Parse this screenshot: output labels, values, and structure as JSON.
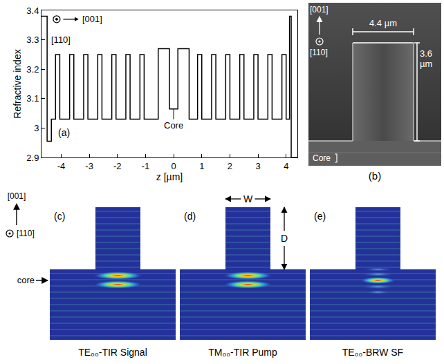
{
  "chart_data": {
    "type": "line",
    "x_label": "z [µm]",
    "y_label": "Refractive index",
    "x": [
      -4.7,
      -4.5,
      -4.35,
      -4.2,
      -4.05,
      -3.7,
      -3.55,
      -3.2,
      -3.05,
      -2.7,
      -2.55,
      -2.2,
      -2.05,
      -1.7,
      -1.55,
      -1.2,
      -1.05,
      -0.55,
      -0.15,
      0.15,
      0.55,
      0.85,
      1.0,
      1.35,
      1.5,
      1.85,
      2.0,
      2.35,
      2.5,
      2.85,
      3.0,
      3.35,
      3.5,
      3.85,
      4.0,
      4.12,
      4.18,
      4.4
    ],
    "values": [
      3.38,
      2.955,
      3.03,
      3.25,
      3.03,
      3.25,
      3.03,
      3.25,
      3.03,
      3.25,
      3.03,
      3.25,
      3.03,
      3.25,
      3.03,
      3.25,
      3.03,
      3.27,
      3.065,
      3.27,
      3.03,
      3.25,
      3.03,
      3.25,
      3.03,
      3.25,
      3.03,
      3.25,
      3.03,
      3.25,
      3.03,
      3.25,
      3.03,
      3.25,
      3.03,
      3.38,
      2.9,
      2.9
    ],
    "color": "#000000",
    "line_style": "step",
    "xlim": [
      -4.7,
      4.4
    ],
    "xticks": [
      -4,
      -3,
      -2,
      -1,
      0,
      1,
      2,
      3,
      4
    ],
    "ylim": [
      2.9,
      3.4
    ],
    "yticks": [
      2.9,
      3,
      3.1,
      3.2,
      3.3,
      3.4
    ],
    "grid": false,
    "panel_label": {
      "text": "(a)",
      "x": -3.9,
      "y": 2.985
    },
    "core_label": {
      "text": "Core",
      "x": 0,
      "y": 3.065
    },
    "orientation_labels": {
      "in_plane": {
        "text": "[001]",
        "x": -3.3,
        "y": 3.37
      },
      "out_of_plane": {
        "text": "[110]",
        "x": -4.4,
        "y": 3.3
      }
    }
  },
  "sem_image": {
    "panel_label": "(b)",
    "width_label": "4.4 µm",
    "height_label": "3.6 µm",
    "axis_up": "[001]",
    "axis_out": "[110]",
    "core_label": "Core"
  },
  "mode_profiles": {
    "axis_up": "[001]",
    "axis_out": "[110]",
    "core_label": "core",
    "panels": [
      {
        "label": "(c)",
        "caption": "TE₀₀-TIR Signal"
      },
      {
        "label": "(d)",
        "caption": "TM₀₀-TIR Pump",
        "width_label": "W",
        "depth_label": "D"
      },
      {
        "label": "(e)",
        "caption": "TE₀₀-BRW SF"
      }
    ]
  }
}
